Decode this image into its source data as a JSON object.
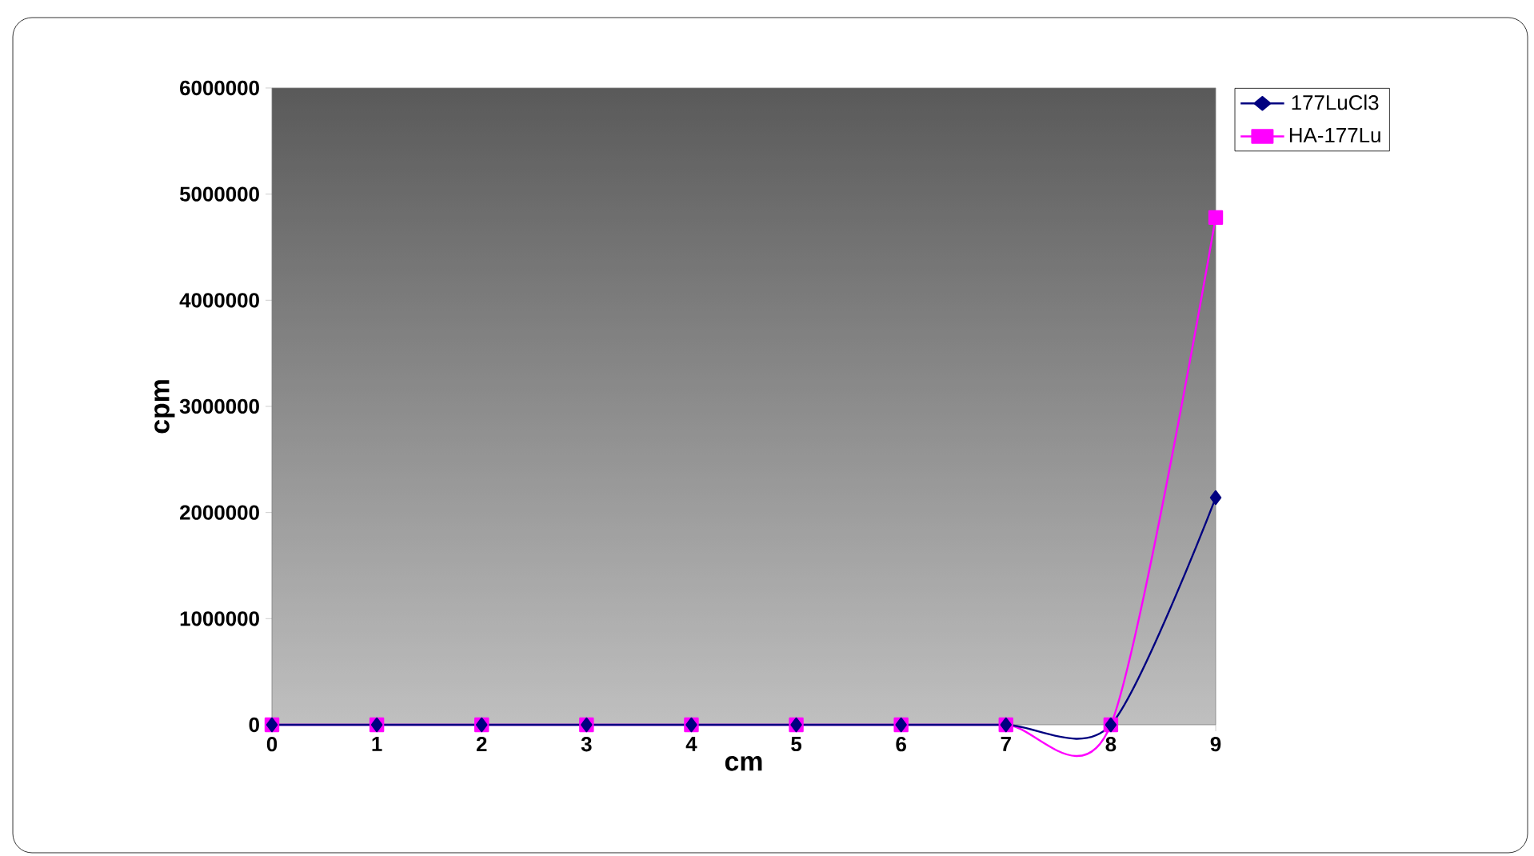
{
  "chart_data": {
    "type": "line",
    "xlabel": "cm",
    "ylabel": "cpm",
    "x": [
      0,
      1,
      2,
      3,
      4,
      5,
      6,
      7,
      8,
      9
    ],
    "series": [
      {
        "name": "177LuCl3",
        "color": "#000080",
        "marker": "diamond",
        "values": [
          0,
          0,
          0,
          0,
          0,
          0,
          0,
          0,
          0,
          2140000
        ]
      },
      {
        "name": "HA-177Lu",
        "color": "#ff00ff",
        "marker": "square",
        "values": [
          0,
          0,
          0,
          0,
          0,
          0,
          0,
          0,
          0,
          4780000
        ]
      }
    ],
    "xlim": [
      0,
      9
    ],
    "xticks": [
      0,
      1,
      2,
      3,
      4,
      5,
      6,
      7,
      8,
      9
    ],
    "ylim": [
      0,
      6000000
    ],
    "yticks": [
      0,
      1000000,
      2000000,
      3000000,
      4000000,
      5000000,
      6000000
    ],
    "grid": false,
    "legend": "top right",
    "line_style": "solid"
  }
}
